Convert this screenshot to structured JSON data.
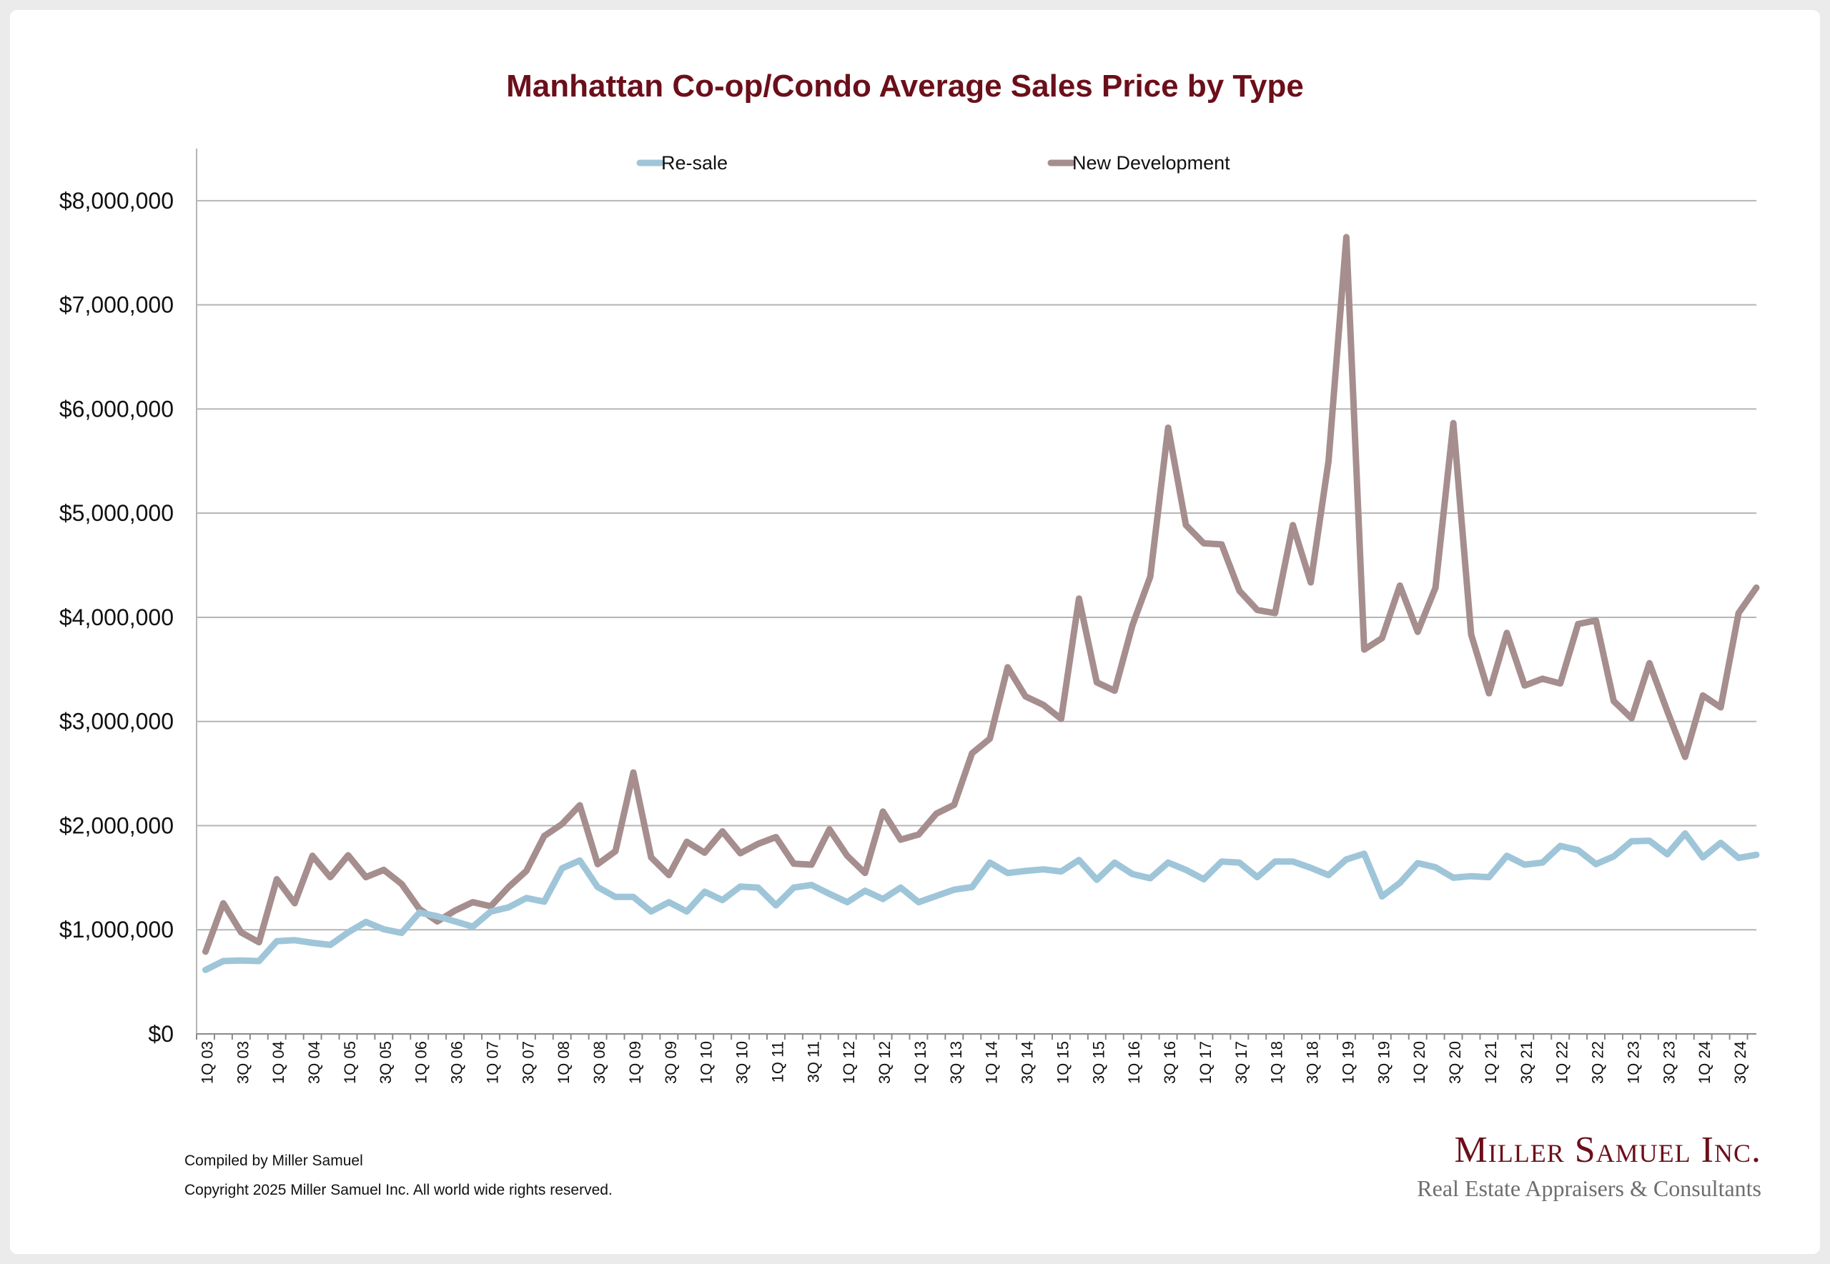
{
  "chart_data": {
    "type": "line",
    "title": "Manhattan Co-op/Condo Average Sales Price by Type",
    "xlabel": "",
    "ylabel": "",
    "ylim": [
      0,
      8500000
    ],
    "y_ticks": [
      0,
      1000000,
      2000000,
      3000000,
      4000000,
      5000000,
      6000000,
      7000000,
      8000000
    ],
    "y_tick_labels": [
      "$0",
      "$1,000,000",
      "$2,000,000",
      "$3,000,000",
      "$4,000,000",
      "$5,000,000",
      "$6,000,000",
      "$7,000,000",
      "$8,000,000"
    ],
    "grid": true,
    "legend_position": "top-center",
    "x_tick_labels": [
      "1Q 03",
      "3Q 03",
      "1Q 04",
      "3Q 04",
      "1Q 05",
      "3Q 05",
      "1Q 06",
      "3Q 06",
      "1Q 07",
      "3Q 07",
      "1Q 08",
      "3Q 08",
      "1Q 09",
      "3Q 09",
      "1Q 10",
      "3Q 10",
      "1Q 11",
      "3Q 11",
      "1Q 12",
      "3Q 12",
      "1Q 13",
      "3Q 13",
      "1Q 14",
      "3Q 14",
      "1Q 15",
      "3Q 15",
      "1Q 16",
      "3Q 16",
      "1Q 17",
      "3Q 17",
      "1Q 18",
      "3Q 18",
      "1Q 19",
      "3Q 19",
      "1Q 20",
      "3Q 20",
      "1Q 21",
      "3Q 21",
      "1Q 22",
      "3Q 22",
      "1Q 23",
      "3Q 23",
      "1Q 24",
      "3Q 24"
    ],
    "series": [
      {
        "name": "Re-sale",
        "color": "#9fc5d9",
        "values": [
          615000,
          700000,
          705000,
          700000,
          890000,
          900000,
          875000,
          855000,
          975000,
          1075000,
          1005000,
          970000,
          1165000,
          1130000,
          1080000,
          1030000,
          1175000,
          1215000,
          1305000,
          1270000,
          1590000,
          1665000,
          1410000,
          1315000,
          1315000,
          1175000,
          1265000,
          1175000,
          1365000,
          1285000,
          1415000,
          1405000,
          1235000,
          1405000,
          1430000,
          1345000,
          1265000,
          1375000,
          1295000,
          1405000,
          1265000,
          1325000,
          1385000,
          1410000,
          1645000,
          1545000,
          1565000,
          1580000,
          1560000,
          1670000,
          1480000,
          1645000,
          1535000,
          1495000,
          1645000,
          1575000,
          1485000,
          1655000,
          1645000,
          1505000,
          1655000,
          1655000,
          1595000,
          1525000,
          1675000,
          1730000,
          1320000,
          1450000,
          1640000,
          1600000,
          1500000,
          1515000,
          1505000,
          1710000,
          1625000,
          1645000,
          1805000,
          1765000,
          1630000,
          1705000,
          1850000,
          1855000,
          1725000,
          1925000,
          1695000,
          1835000,
          1690000,
          1720000
        ]
      },
      {
        "name": "New Development",
        "color": "#a68e8e",
        "values": [
          790000,
          1255000,
          975000,
          880000,
          1485000,
          1255000,
          1710000,
          1505000,
          1715000,
          1505000,
          1575000,
          1440000,
          1200000,
          1080000,
          1185000,
          1265000,
          1225000,
          1410000,
          1565000,
          1900000,
          2015000,
          2195000,
          1630000,
          1755000,
          2510000,
          1695000,
          1525000,
          1845000,
          1740000,
          1945000,
          1735000,
          1825000,
          1890000,
          1635000,
          1625000,
          1965000,
          1710000,
          1545000,
          2135000,
          1865000,
          1915000,
          2115000,
          2200000,
          2695000,
          2835000,
          3520000,
          3240000,
          3160000,
          3025000,
          4180000,
          3375000,
          3295000,
          3925000,
          4390000,
          5820000,
          4885000,
          4710000,
          4700000,
          4255000,
          4070000,
          4040000,
          4885000,
          4335000,
          5500000,
          7650000,
          3690000,
          3800000,
          4305000,
          3860000,
          4285000,
          5865000,
          3835000,
          3270000,
          3850000,
          3345000,
          3410000,
          3365000,
          3935000,
          3970000,
          3195000,
          3030000,
          3560000,
          3100000,
          2660000,
          3250000,
          3135000,
          4040000,
          4285000
        ]
      }
    ]
  },
  "footer": {
    "compiled": "Compiled by Miller Samuel",
    "copyright": "Copyright 2025 Miller Samuel Inc.  All world wide rights reserved."
  },
  "logo": {
    "name": "Miller Samuel Inc.",
    "tagline": "Real Estate Appraisers & Consultants"
  }
}
